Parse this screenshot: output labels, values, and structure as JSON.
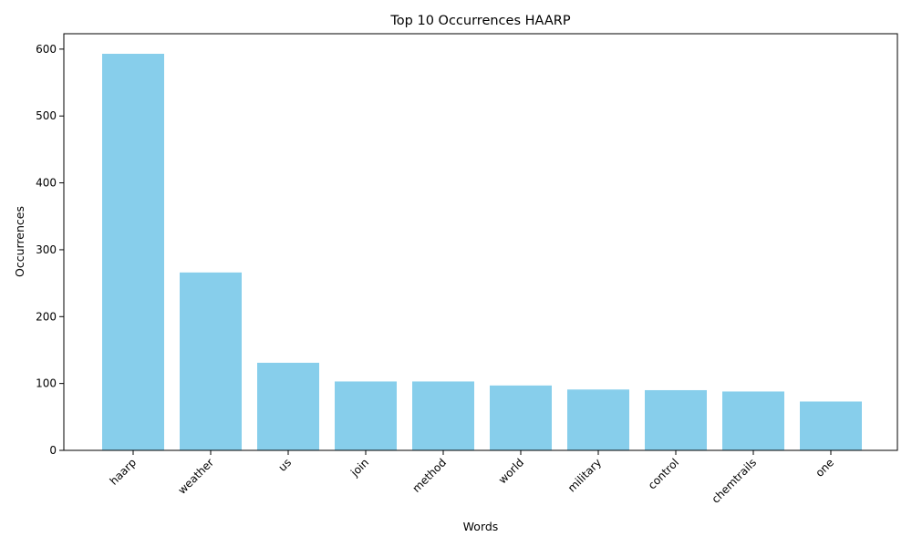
{
  "chart_data": {
    "type": "bar",
    "title": "Top 10 Occurrences HAARP",
    "xlabel": "Words",
    "ylabel": "Occurrences",
    "categories": [
      "haarp",
      "weather",
      "us",
      "join",
      "method",
      "world",
      "military",
      "control",
      "chemtrails",
      "one"
    ],
    "values": [
      593,
      266,
      131,
      103,
      103,
      97,
      91,
      90,
      88,
      73
    ],
    "ylim": [
      0,
      623
    ],
    "yticks": [
      0,
      100,
      200,
      300,
      400,
      500,
      600
    ],
    "bar_color": "#87ceeb",
    "grid": false,
    "legend": "none"
  }
}
